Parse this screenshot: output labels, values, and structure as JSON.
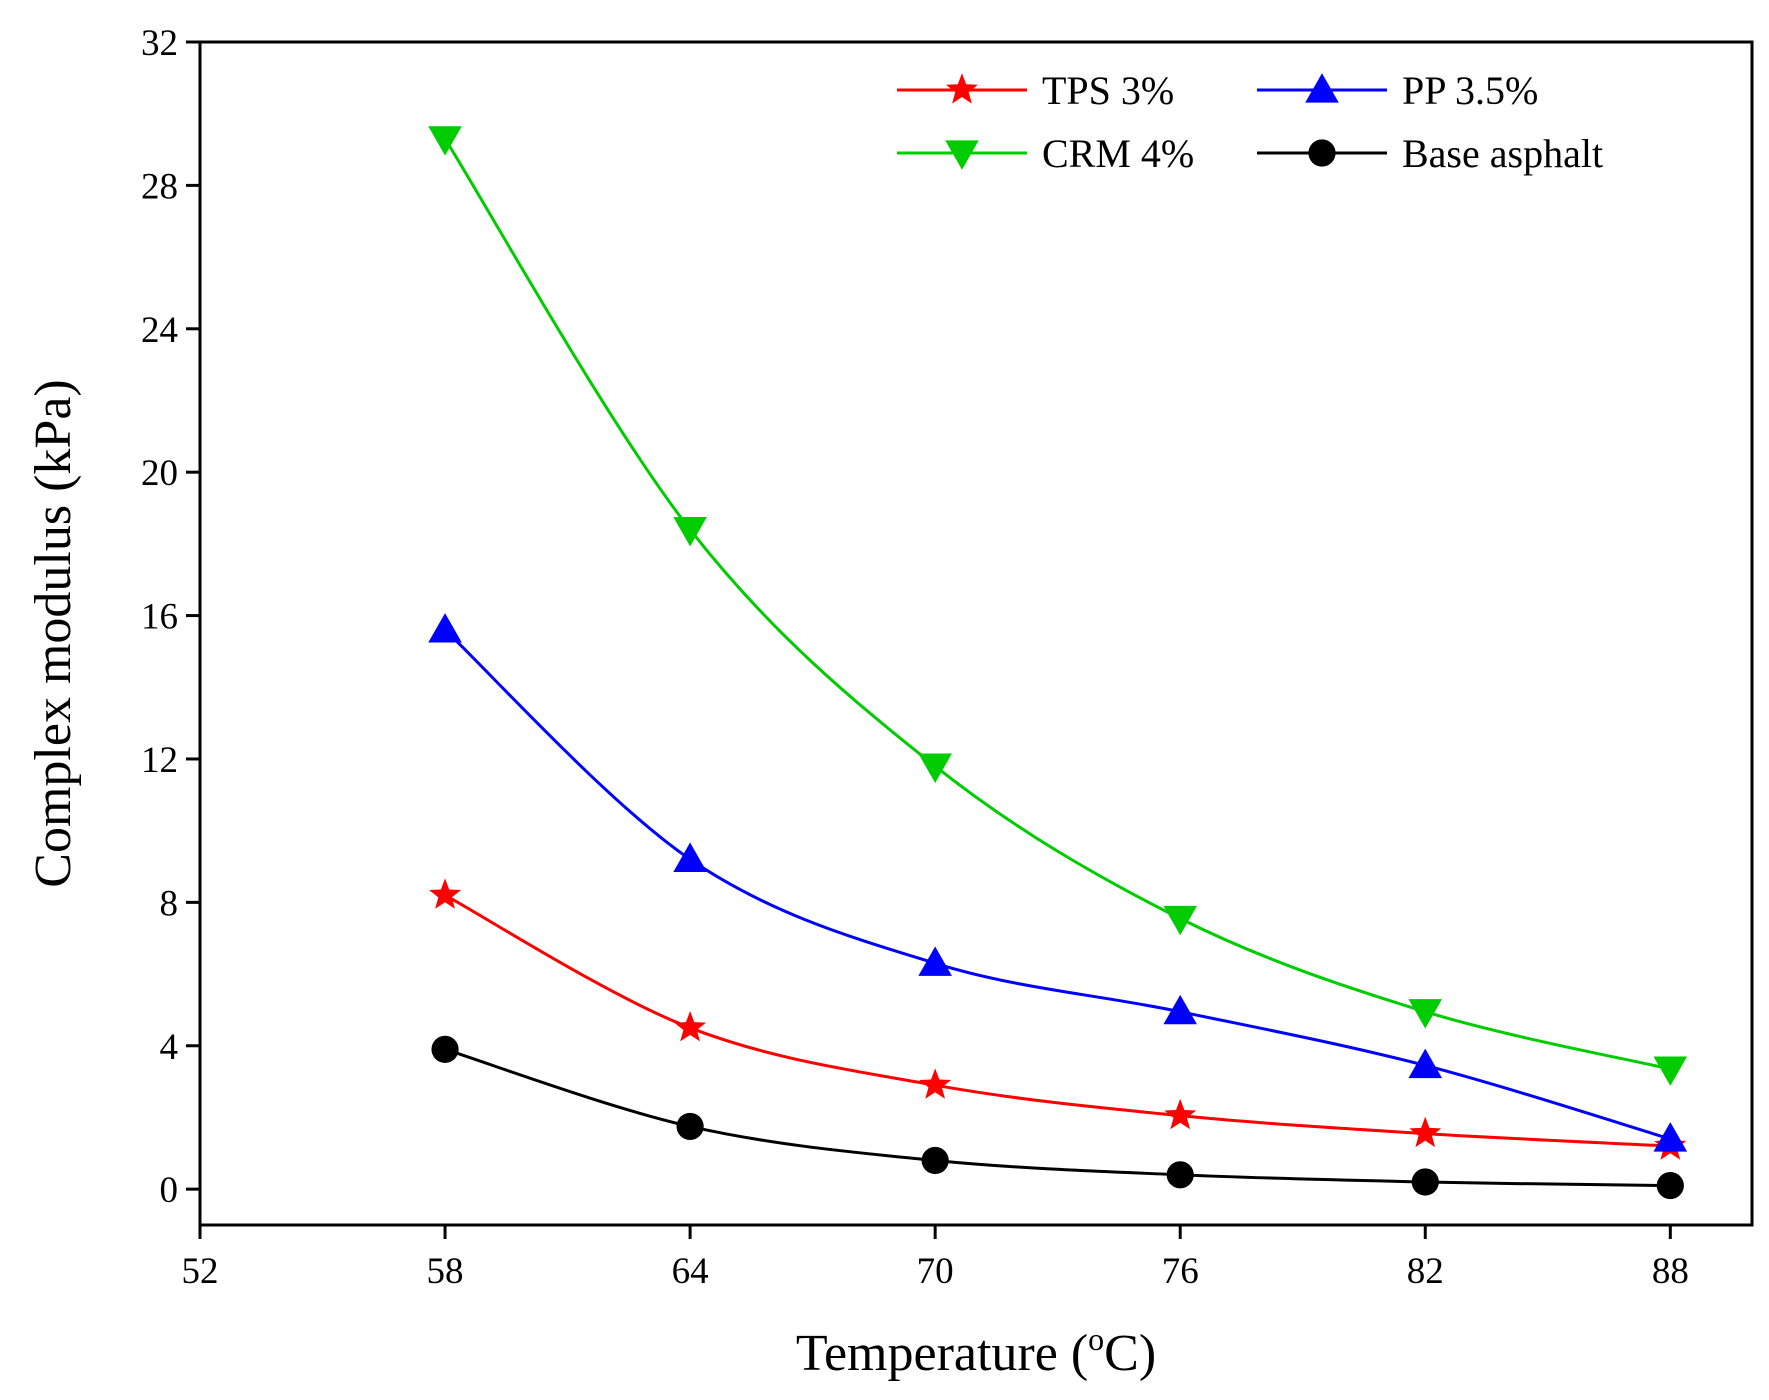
{
  "chart_data": {
    "type": "line",
    "title": "",
    "xlabel": "Temperature (",
    "xlabel_sup": "o",
    "xlabel_end": "C)",
    "ylabel": "Complex modulus (kPa)",
    "xlim": [
      52,
      90
    ],
    "ylim": [
      -1,
      32
    ],
    "xticks": [
      52,
      58,
      64,
      70,
      76,
      82,
      88
    ],
    "yticks": [
      0,
      4,
      8,
      12,
      16,
      20,
      24,
      28,
      32
    ],
    "x": [
      58,
      64,
      70,
      76,
      82,
      88
    ],
    "legend_position": "top-right",
    "grid": false,
    "series": [
      {
        "name": "TPS 3%",
        "color": "#ff0000",
        "marker": "star",
        "values": [
          8.2,
          4.5,
          2.9,
          2.05,
          1.55,
          1.2
        ]
      },
      {
        "name": "PP 3.5%",
        "color": "#0000ff",
        "marker": "triangle-up",
        "values": [
          15.6,
          9.2,
          6.3,
          4.95,
          3.45,
          1.4
        ]
      },
      {
        "name": "CRM 4%",
        "color": "#00cc00",
        "marker": "triangle-down",
        "values": [
          29.3,
          18.4,
          11.8,
          7.55,
          4.95,
          3.35
        ]
      },
      {
        "name": "Base asphalt",
        "color": "#000000",
        "marker": "circle",
        "values": [
          3.9,
          1.75,
          0.8,
          0.4,
          0.2,
          0.1
        ]
      }
    ]
  }
}
